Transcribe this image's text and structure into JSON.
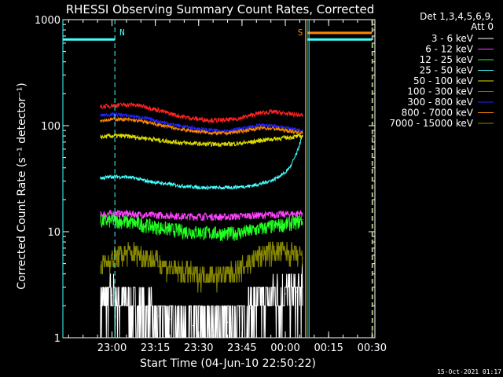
{
  "chart_data": {
    "type": "line",
    "title": "RHESSI Observing Summary Count Rates, Corrected",
    "xlabel": "Start Time (04-Jun-10 22:50:22)",
    "ylabel": "Corrected Count Rate (s⁻¹ detector⁻¹)",
    "y_scale": "log",
    "ylim": [
      1,
      1000
    ],
    "xlim_minutes": [
      -7,
      101
    ],
    "x_ticks": [
      {
        "label": "23:00",
        "t": 10
      },
      {
        "label": "23:15",
        "t": 25
      },
      {
        "label": "23:30",
        "t": 40
      },
      {
        "label": "23:45",
        "t": 55
      },
      {
        "label": "00:00",
        "t": 70
      },
      {
        "label": "00:15",
        "t": 85
      },
      {
        "label": "00:30",
        "t": 100
      }
    ],
    "y_ticks": [
      {
        "label": "1",
        "v": 1
      },
      {
        "label": "10",
        "v": 10
      },
      {
        "label": "100",
        "v": 100
      },
      {
        "label": "1000",
        "v": 1000
      }
    ],
    "legend_header": [
      "Det 1,3,4,5,6,9,",
      "Att 0"
    ],
    "legend_placement": "right",
    "series": [
      {
        "name": "3 - 6 keV",
        "color": "#ffffff",
        "x": [
          6,
          10,
          14,
          18,
          22,
          26,
          30,
          34,
          38,
          42,
          46,
          50,
          54,
          58,
          62,
          66,
          70,
          74,
          76
        ],
        "y": [
          2,
          2.5,
          2.2,
          2,
          1.8,
          1.6,
          1.5,
          1.4,
          1.3,
          1.3,
          1.3,
          1.4,
          1.6,
          1.9,
          2.2,
          2.5,
          2.6,
          2.7,
          3
        ]
      },
      {
        "name": "6 - 12 keV",
        "color": "#ff44ff",
        "x": [
          6,
          10,
          14,
          18,
          22,
          26,
          30,
          34,
          38,
          42,
          46,
          50,
          54,
          58,
          62,
          66,
          70,
          74,
          76
        ],
        "y": [
          14.5,
          14.8,
          14.8,
          14.6,
          14.4,
          14.3,
          14.2,
          14.0,
          13.9,
          13.9,
          13.8,
          13.8,
          14.0,
          14.2,
          14.3,
          14.5,
          14.6,
          14.8,
          15
        ]
      },
      {
        "name": "12 - 25 keV",
        "color": "#22ff22",
        "x": [
          6,
          10,
          14,
          18,
          22,
          26,
          30,
          34,
          38,
          42,
          46,
          50,
          54,
          58,
          62,
          66,
          70,
          74,
          76
        ],
        "y": [
          12.5,
          12.8,
          12.5,
          12,
          11.5,
          11,
          10.6,
          10.2,
          10,
          9.8,
          9.7,
          9.6,
          9.8,
          10.2,
          10.8,
          11.3,
          11.8,
          12.3,
          13
        ]
      },
      {
        "name": "25 - 50 keV",
        "color": "#44ffff",
        "x": [
          6,
          10,
          14,
          18,
          22,
          26,
          30,
          34,
          38,
          42,
          46,
          50,
          54,
          58,
          62,
          66,
          70,
          72,
          74,
          76
        ],
        "y": [
          32,
          33,
          33,
          32,
          30,
          29,
          28,
          27,
          26.5,
          26,
          26,
          26,
          26.5,
          27,
          28.5,
          31,
          36,
          42,
          55,
          80
        ]
      },
      {
        "name": "50 - 100 keV",
        "color": "#dddd00",
        "x": [
          6,
          10,
          14,
          18,
          22,
          26,
          30,
          34,
          38,
          42,
          46,
          50,
          54,
          58,
          62,
          66,
          70,
          74,
          76
        ],
        "y": [
          78,
          80,
          80,
          78,
          76,
          73,
          71,
          69,
          68,
          67,
          67,
          67,
          68,
          70,
          73,
          75,
          77,
          79,
          80
        ]
      },
      {
        "name": "100 - 300 keV",
        "color": "#ff2222",
        "x": [
          6,
          10,
          14,
          18,
          22,
          26,
          30,
          34,
          38,
          42,
          46,
          50,
          54,
          58,
          62,
          66,
          70,
          74,
          76
        ],
        "y": [
          150,
          155,
          158,
          157,
          150,
          140,
          130,
          122,
          117,
          114,
          112,
          113,
          117,
          125,
          133,
          135,
          130,
          127,
          125
        ]
      },
      {
        "name": "300 - 800 keV",
        "color": "#2222ff",
        "x": [
          6,
          10,
          14,
          18,
          22,
          26,
          30,
          34,
          38,
          42,
          46,
          50,
          54,
          58,
          62,
          66,
          70,
          74,
          76
        ],
        "y": [
          125,
          128,
          126,
          122,
          117,
          110,
          104,
          99,
          95,
          92,
          90,
          90,
          93,
          97,
          101,
          100,
          96,
          92,
          90
        ]
      },
      {
        "name": "800 - 7000 keV",
        "color": "#ff8800",
        "x": [
          6,
          10,
          14,
          18,
          22,
          26,
          30,
          34,
          38,
          42,
          46,
          50,
          54,
          58,
          62,
          66,
          70,
          74,
          76
        ],
        "y": [
          112,
          115,
          115,
          112,
          108,
          102,
          97,
          92,
          89,
          87,
          85,
          85,
          88,
          92,
          95,
          94,
          90,
          87,
          85
        ]
      },
      {
        "name": "7000 - 15000 keV",
        "color": "#888800",
        "x": [
          6,
          10,
          14,
          18,
          22,
          26,
          30,
          34,
          38,
          42,
          46,
          50,
          54,
          58,
          62,
          66,
          70,
          74,
          76
        ],
        "y": [
          4.8,
          5.6,
          6.2,
          6.4,
          5.8,
          5.2,
          4.6,
          4.2,
          4.0,
          3.9,
          3.9,
          4.0,
          4.4,
          5.2,
          6.2,
          6.6,
          6.4,
          6.0,
          5.6
        ]
      }
    ],
    "markers": [
      {
        "label": "N",
        "color": "#44ffff",
        "t": 11,
        "line_style": "dashed"
      },
      {
        "label": "S",
        "color": "#ff8800",
        "t": 77,
        "line_style": "solid"
      }
    ],
    "flag_bars": [
      {
        "color": "#44ffff",
        "t_from": -7,
        "t_to": 11,
        "value": 650
      },
      {
        "color": "#44ffff",
        "t_from": 77.5,
        "t_to": 100,
        "value": 650
      },
      {
        "color": "#ff8800",
        "t_from": 77.5,
        "t_to": 100,
        "value": 750
      }
    ],
    "vertical_lines": [
      {
        "color": "#44ffff",
        "t": -7,
        "style": "solid"
      },
      {
        "color": "#44ffff",
        "t": 11,
        "style": "dashed"
      },
      {
        "color": "#44ffff",
        "t": 77,
        "style": "solid"
      },
      {
        "color": "#ff8800",
        "t": 77.6,
        "style": "solid"
      },
      {
        "color": "#44ffff",
        "t": 78.2,
        "style": "solid"
      },
      {
        "color": "#44ffff",
        "t": 100,
        "style": "dashed"
      },
      {
        "color": "#ff8800",
        "t": 100.3,
        "style": "dashed"
      }
    ]
  },
  "footer": {
    "timestamp": "15-Oct-2021 01:17"
  }
}
